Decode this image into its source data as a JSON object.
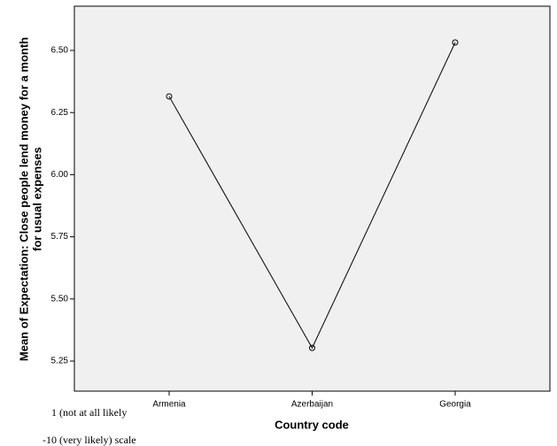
{
  "chart_data": {
    "type": "line",
    "y_label_lines": [
      "Mean of Expectation: Close people lend money for a month",
      "for usual expenses"
    ],
    "x_label": "Country code",
    "categories": [
      "Armenia",
      "Azerbaijan",
      "Georgia"
    ],
    "values": [
      6.315,
      5.303,
      6.532
    ],
    "color": "#000000",
    "ylim": [
      5.129,
      6.678
    ],
    "yticks": [
      {
        "value": 5.25,
        "label": "5.25"
      },
      {
        "value": 5.5,
        "label": "5.50"
      },
      {
        "value": 5.75,
        "label": "5.75"
      },
      {
        "value": 6.0,
        "label": "6.00"
      },
      6.25,
      {
        "value": 6.5,
        "label": "6.50"
      }
    ],
    "notes": [
      "1 (not at all likely",
      "-10 (very likely) scale"
    ]
  }
}
